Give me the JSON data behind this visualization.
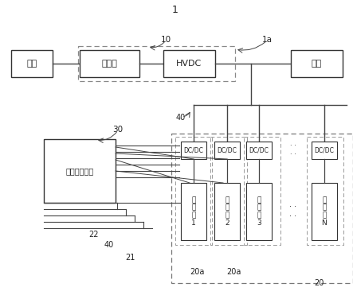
{
  "bg_color": "#ffffff",
  "lc": "#444444",
  "fc": "#222222",
  "top_label": "1",
  "label_10": "10",
  "label_1a": "1a",
  "label_40_top": "40",
  "label_30": "30",
  "label_22": "22",
  "label_40_bot": "40",
  "label_21": "21",
  "label_20a_1": "20a",
  "label_20a_2": "20a",
  "label_20": "20",
  "box_shidian": "市电",
  "box_bianyaqi": "变压器",
  "box_hvdc": "HVDC",
  "box_fuzai": "负载",
  "box_bms": "电池管理中心",
  "dcdc_labels": [
    "DC/DC",
    "DC/DC",
    "DC/DC",
    "DC/DC"
  ],
  "battery_labels": [
    "电\n池\n组\n1",
    "电\n池\n组\n2",
    "电\n池\n组\n3",
    "电\n池\n组\nN"
  ]
}
